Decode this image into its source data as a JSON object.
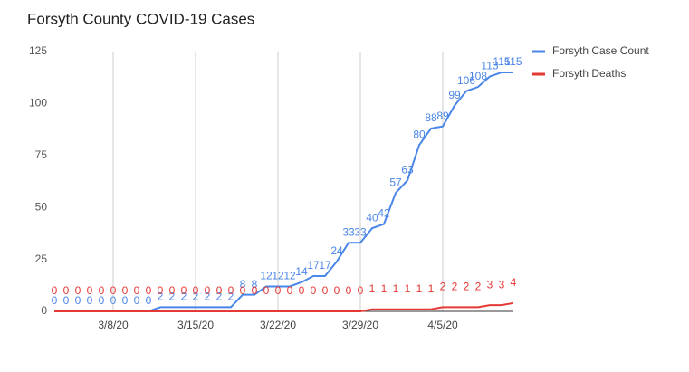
{
  "chart_data": {
    "type": "line",
    "title": "Forsyth County COVID-19 Cases",
    "categories": [
      null,
      null,
      null,
      null,
      null,
      "3/8/20",
      null,
      null,
      null,
      null,
      null,
      null,
      "3/15/20",
      null,
      null,
      null,
      null,
      null,
      null,
      "3/22/20",
      null,
      null,
      null,
      null,
      null,
      null,
      "3/29/20",
      null,
      null,
      null,
      null,
      null,
      null,
      "4/5/20",
      null,
      null,
      null,
      null,
      null,
      null
    ],
    "series": [
      {
        "name": "Forsyth Case Count",
        "color": "#4a86e8",
        "values": [
          0,
          0,
          0,
          0,
          0,
          0,
          0,
          0,
          0,
          2,
          2,
          2,
          2,
          2,
          2,
          2,
          8,
          8,
          12,
          12,
          12,
          14,
          17,
          17,
          24,
          33,
          33,
          40,
          42,
          57,
          63,
          80,
          88,
          89,
          99,
          106,
          108,
          113,
          115,
          115
        ]
      },
      {
        "name": "Forsyth Deaths",
        "color": "#e53935",
        "values": [
          0,
          0,
          0,
          0,
          0,
          0,
          0,
          0,
          0,
          0,
          0,
          0,
          0,
          0,
          0,
          0,
          0,
          0,
          0,
          0,
          0,
          0,
          0,
          0,
          0,
          0,
          0,
          1,
          1,
          1,
          1,
          1,
          1,
          2,
          2,
          2,
          2,
          3,
          3,
          4
        ]
      }
    ],
    "ylim": [
      0,
      125
    ],
    "yticks": [
      0,
      25,
      50,
      75,
      100,
      125
    ],
    "grid": true,
    "legend": "right"
  }
}
